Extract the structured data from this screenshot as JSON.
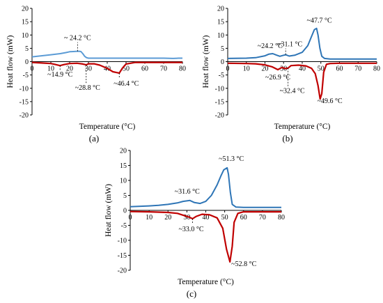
{
  "figure": {
    "panels": [
      "(a)",
      "(b)",
      "(c)"
    ]
  },
  "colors": {
    "heating": "#5b9bd5",
    "cooling": "#c00000",
    "heating_dark": "#2e75b6"
  },
  "chart_data": [
    {
      "panel": "(a)",
      "type": "line",
      "xlabel": "Temperature (°C)",
      "ylabel": "Heat flow (mW)",
      "xlim": [
        0,
        80
      ],
      "ylim": [
        -20,
        20
      ],
      "xticks": [
        0,
        10,
        20,
        30,
        40,
        50,
        60,
        70,
        80
      ],
      "yticks": [
        -20,
        -15,
        -10,
        -5,
        0,
        5,
        10,
        15,
        20
      ],
      "series": [
        {
          "x": [
            0,
            5,
            10,
            15,
            18,
            20,
            22,
            24,
            25,
            26,
            27,
            28,
            29,
            30,
            35,
            40,
            45,
            50,
            60,
            70,
            75,
            78,
            80
          ],
          "y": [
            1.8,
            2.2,
            2.6,
            3.0,
            3.4,
            3.7,
            3.8,
            3.9,
            3.9,
            3.8,
            3.0,
            2.0,
            1.5,
            1.3,
            1.3,
            1.3,
            1.3,
            1.3,
            1.3,
            1.3,
            1.2,
            1.3,
            1.3
          ]
        },
        {
          "x": [
            0,
            5,
            10,
            12,
            14.9,
            17,
            20,
            24,
            27,
            28.8,
            30,
            33,
            36,
            40,
            43,
            46.4,
            48,
            50,
            55,
            60,
            70,
            80
          ],
          "y": [
            -0.3,
            -0.5,
            -0.7,
            -1.0,
            -1.5,
            -1.1,
            -0.7,
            -0.6,
            -0.9,
            -1.2,
            -0.8,
            -0.8,
            -1.3,
            -2.5,
            -3.8,
            -4.3,
            -2.5,
            -0.9,
            -0.3,
            -0.3,
            -0.3,
            -0.3
          ]
        }
      ],
      "annotations": [
        {
          "text": "~ 24.2 °C",
          "x": 24.2,
          "y": 3.9
        },
        {
          "text": "~14.9 °C",
          "x": 14.9,
          "y": -1.5
        },
        {
          "text": "~28.8 °C",
          "x": 28.8,
          "y": -1.2
        },
        {
          "text": "~46.4 °C",
          "x": 46.4,
          "y": -4.3
        }
      ]
    },
    {
      "panel": "(b)",
      "type": "line",
      "xlabel": "Temperature (°C)",
      "ylabel": "Heat flow (mW)",
      "xlim": [
        0,
        80
      ],
      "ylim": [
        -20,
        20
      ],
      "xticks": [
        0,
        10,
        20,
        30,
        40,
        50,
        60,
        70,
        80
      ],
      "yticks": [
        -20,
        -15,
        -10,
        -5,
        0,
        5,
        10,
        15,
        20
      ],
      "series": [
        {
          "x": [
            0,
            10,
            15,
            20,
            22,
            24.2,
            26,
            28,
            30,
            31.1,
            33,
            36,
            40,
            43,
            45,
            46.5,
            47.7,
            48.5,
            49.5,
            50.5,
            52,
            55,
            60,
            70,
            80
          ],
          "y": [
            1.2,
            1.3,
            1.5,
            2.2,
            2.8,
            3.0,
            2.5,
            2.0,
            2.4,
            2.6,
            2.1,
            2.4,
            3.5,
            6.0,
            9.5,
            12.0,
            12.5,
            10.0,
            5.0,
            2.0,
            1.2,
            1.0,
            1.0,
            1.0,
            1.0
          ]
        },
        {
          "x": [
            0,
            10,
            15,
            20,
            24,
            26.9,
            29,
            31,
            32.4,
            34,
            38,
            42,
            45,
            47,
            48.5,
            49.6,
            50.5,
            51.5,
            53,
            55,
            60,
            70,
            80
          ],
          "y": [
            -0.6,
            -0.7,
            -0.8,
            -1.2,
            -2.0,
            -3.0,
            -2.2,
            -2.6,
            -2.4,
            -1.5,
            -1.3,
            -1.6,
            -2.5,
            -4.5,
            -9.0,
            -14.0,
            -12.0,
            -4.0,
            -1.0,
            -0.7,
            -0.6,
            -0.6,
            -0.6
          ]
        }
      ],
      "annotations": [
        {
          "text": "~47.7 °C",
          "x": 47.7,
          "y": 12.5
        },
        {
          "text": "~31.1 °C",
          "x": 31.1,
          "y": 2.6
        },
        {
          "text": "~24.2 °C",
          "x": 24.2,
          "y": 3.0
        },
        {
          "text": "~26.9 °C",
          "x": 26.9,
          "y": -3.0
        },
        {
          "text": "~32.4 °C",
          "x": 32.4,
          "y": -2.4
        },
        {
          "text": "~49.6 °C",
          "x": 49.6,
          "y": -14.0
        }
      ]
    },
    {
      "panel": "(c)",
      "type": "line",
      "xlabel": "Temperature (°C)",
      "ylabel": "Heat flow (mW)",
      "xlim": [
        0,
        80
      ],
      "ylim": [
        -20,
        20
      ],
      "xticks": [
        0,
        10,
        20,
        30,
        40,
        50,
        60,
        70,
        80
      ],
      "yticks": [
        -20,
        -15,
        -10,
        -5,
        0,
        5,
        10,
        15,
        20
      ],
      "series": [
        {
          "x": [
            0,
            10,
            15,
            20,
            25,
            28,
            31.6,
            34,
            37,
            40,
            43,
            46,
            48,
            49.5,
            51.3,
            52,
            53,
            54,
            56,
            60,
            70,
            80
          ],
          "y": [
            1.2,
            1.5,
            1.7,
            2.0,
            2.5,
            3.0,
            3.3,
            2.6,
            2.3,
            3.0,
            5.0,
            8.5,
            11.5,
            13.5,
            14.2,
            12.0,
            6.0,
            2.0,
            1.1,
            1.0,
            1.0,
            1.0
          ]
        },
        {
          "x": [
            0,
            10,
            20,
            25,
            28,
            31,
            33.0,
            35,
            38,
            42,
            46,
            49,
            51,
            52.8,
            54,
            55,
            57,
            60,
            70,
            80
          ],
          "y": [
            -0.4,
            -0.5,
            -0.7,
            -1.0,
            -1.6,
            -2.2,
            -2.8,
            -2.0,
            -1.3,
            -1.5,
            -2.5,
            -6.0,
            -13.0,
            -17.2,
            -12.0,
            -4.0,
            -1.0,
            -0.5,
            -0.5,
            -0.5
          ]
        }
      ],
      "annotations": [
        {
          "text": "~51.3 °C",
          "x": 51.3,
          "y": 14.2
        },
        {
          "text": "~31.6 °C",
          "x": 31.6,
          "y": 3.3
        },
        {
          "text": "~33.0 °C",
          "x": 33.0,
          "y": -2.8
        },
        {
          "text": "~52.8 °C",
          "x": 52.8,
          "y": -17.2
        }
      ]
    }
  ]
}
